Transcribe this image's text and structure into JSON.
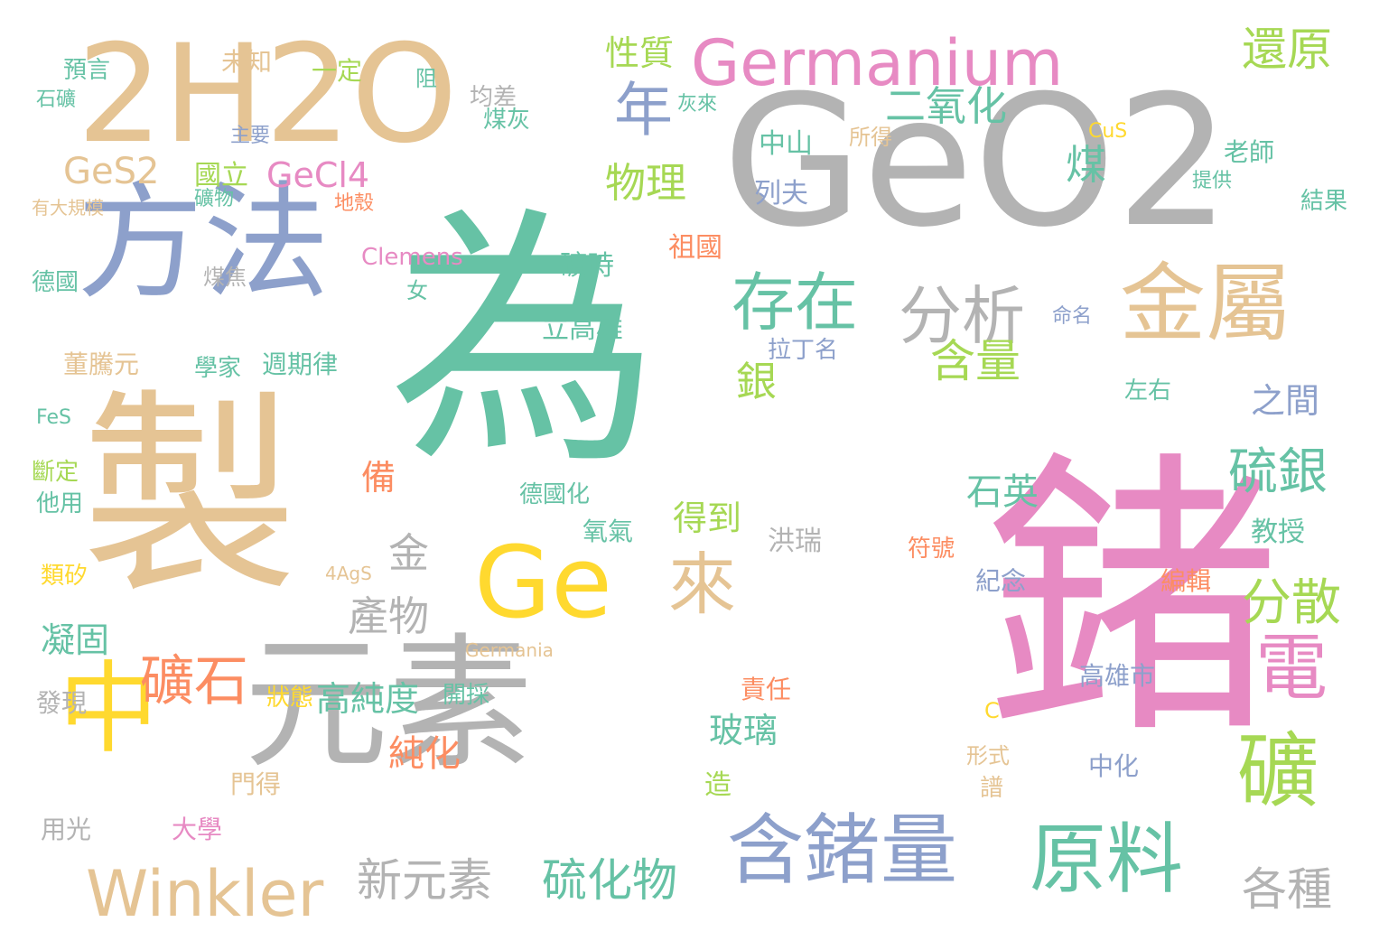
{
  "palette": {
    "teal": "#66c2a5",
    "orange": "#fc8d62",
    "blue": "#8da0cb",
    "pink": "#e78ac3",
    "green": "#a6d854",
    "yellow": "#ffd92f",
    "tan": "#e5c494",
    "gray": "#b3b3b3"
  },
  "words": [
    {
      "text": "鍺",
      "color": "pink"
    },
    {
      "text": "為",
      "color": "teal"
    },
    {
      "text": "GeO2",
      "color": "gray"
    },
    {
      "text": "製",
      "color": "tan"
    },
    {
      "text": "2H2O",
      "color": "tan"
    },
    {
      "text": "元素",
      "color": "gray"
    },
    {
      "text": "方法",
      "color": "blue"
    },
    {
      "text": "中",
      "color": "yellow"
    },
    {
      "text": "Ge",
      "color": "yellow"
    },
    {
      "text": "含鍺量",
      "color": "blue"
    },
    {
      "text": "原料",
      "color": "teal"
    },
    {
      "text": "金屬",
      "color": "tan"
    },
    {
      "text": "礦",
      "color": "green"
    },
    {
      "text": "Germanium",
      "color": "pink"
    },
    {
      "text": "Winkler",
      "color": "tan"
    },
    {
      "text": "來",
      "color": "tan"
    },
    {
      "text": "電",
      "color": "pink"
    },
    {
      "text": "存在",
      "color": "teal"
    },
    {
      "text": "分析",
      "color": "gray"
    },
    {
      "text": "年",
      "color": "blue"
    },
    {
      "text": "礦石",
      "color": "orange"
    },
    {
      "text": "硫銀",
      "color": "teal"
    },
    {
      "text": "分散",
      "color": "green"
    },
    {
      "text": "新元素",
      "color": "gray"
    },
    {
      "text": "硫化物",
      "color": "teal"
    },
    {
      "text": "還原",
      "color": "green"
    },
    {
      "text": "含量",
      "color": "green"
    },
    {
      "text": "產物",
      "color": "gray"
    },
    {
      "text": "各種",
      "color": "gray"
    },
    {
      "text": "二氧化",
      "color": "teal"
    },
    {
      "text": "煤",
      "color": "teal"
    },
    {
      "text": "銀",
      "color": "green"
    },
    {
      "text": "金",
      "color": "gray"
    },
    {
      "text": "物理",
      "color": "green"
    },
    {
      "text": "GeS2",
      "color": "tan"
    },
    {
      "text": "高純度",
      "color": "teal"
    },
    {
      "text": "純化",
      "color": "orange"
    },
    {
      "text": "得到",
      "color": "green"
    },
    {
      "text": "GeCl4",
      "color": "pink"
    },
    {
      "text": "之間",
      "color": "blue"
    },
    {
      "text": "石英",
      "color": "teal"
    },
    {
      "text": "玻璃",
      "color": "teal"
    },
    {
      "text": "性質",
      "color": "green"
    },
    {
      "text": "凝固",
      "color": "teal"
    },
    {
      "text": "備",
      "color": "orange"
    },
    {
      "text": "Clemens",
      "color": "pink"
    },
    {
      "text": "國立",
      "color": "green"
    },
    {
      "text": "中山",
      "color": "teal"
    },
    {
      "text": "礦時",
      "color": "teal"
    },
    {
      "text": "立高雄",
      "color": "teal"
    },
    {
      "text": "造",
      "color": "green"
    },
    {
      "text": "未知",
      "color": "tan"
    },
    {
      "text": "一定",
      "color": "green"
    },
    {
      "text": "均差",
      "color": "gray"
    },
    {
      "text": "煤灰",
      "color": "teal"
    },
    {
      "text": "列夫",
      "color": "blue"
    },
    {
      "text": "祖國",
      "color": "orange"
    },
    {
      "text": "預言",
      "color": "teal"
    },
    {
      "text": "石礦",
      "color": "teal"
    },
    {
      "text": "主要",
      "color": "blue"
    },
    {
      "text": "礦物",
      "color": "teal"
    },
    {
      "text": "地殼",
      "color": "orange"
    },
    {
      "text": "學家",
      "color": "teal"
    },
    {
      "text": "週期律",
      "color": "teal"
    },
    {
      "text": "董騰元",
      "color": "tan"
    },
    {
      "text": "德國化",
      "color": "teal"
    },
    {
      "text": "氧氣",
      "color": "teal"
    },
    {
      "text": "洪瑞",
      "color": "gray"
    },
    {
      "text": "教授",
      "color": "teal"
    },
    {
      "text": "紀念",
      "color": "blue"
    },
    {
      "text": "編輯",
      "color": "orange"
    },
    {
      "text": "高雄市",
      "color": "blue"
    },
    {
      "text": "中化",
      "color": "blue"
    },
    {
      "text": "責任",
      "color": "orange"
    },
    {
      "text": "Germania",
      "color": "tan"
    },
    {
      "text": "開採",
      "color": "teal"
    },
    {
      "text": "狀態",
      "color": "yellow"
    },
    {
      "text": "門得",
      "color": "tan"
    },
    {
      "text": "大學",
      "color": "pink"
    },
    {
      "text": "用光",
      "color": "gray"
    },
    {
      "text": "發現",
      "color": "gray"
    },
    {
      "text": "類矽",
      "color": "yellow"
    },
    {
      "text": "斷定",
      "color": "green"
    },
    {
      "text": "他用",
      "color": "teal"
    },
    {
      "text": "德國",
      "color": "teal"
    },
    {
      "text": "老師",
      "color": "teal"
    },
    {
      "text": "結果",
      "color": "teal"
    },
    {
      "text": "提供",
      "color": "teal"
    },
    {
      "text": "命名",
      "color": "blue"
    },
    {
      "text": "左右",
      "color": "teal"
    },
    {
      "text": "拉丁名",
      "color": "blue"
    },
    {
      "text": "CuS",
      "color": "yellow"
    },
    {
      "text": "4AgS",
      "color": "tan"
    },
    {
      "text": "FeS",
      "color": "teal"
    },
    {
      "text": "有大規模",
      "color": "tan"
    },
    {
      "text": "煤焦",
      "color": "gray"
    },
    {
      "text": "女",
      "color": "teal"
    },
    {
      "text": "阻",
      "color": "teal"
    },
    {
      "text": "所得",
      "color": "tan"
    },
    {
      "text": "符號",
      "color": "orange"
    },
    {
      "text": "譜",
      "color": "tan"
    },
    {
      "text": "形式",
      "color": "tan"
    },
    {
      "text": "C",
      "color": "yellow"
    },
    {
      "text": "灰來",
      "color": "teal"
    }
  ]
}
